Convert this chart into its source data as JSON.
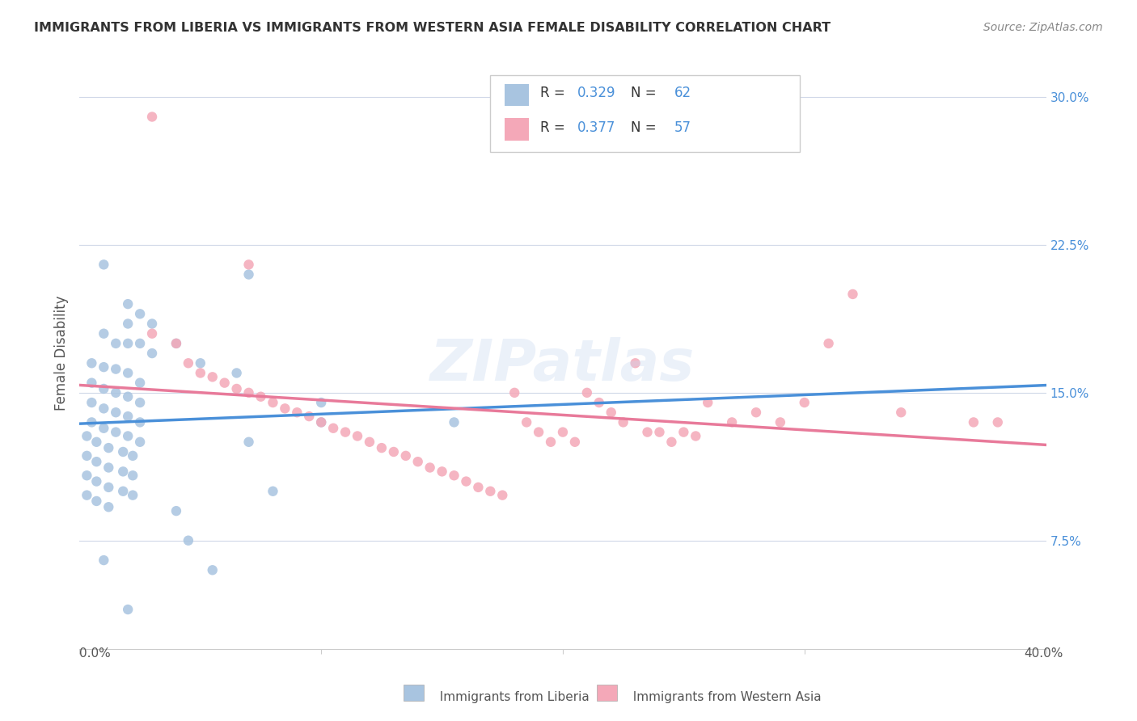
{
  "title": "IMMIGRANTS FROM LIBERIA VS IMMIGRANTS FROM WESTERN ASIA FEMALE DISABILITY CORRELATION CHART",
  "source": "Source: ZipAtlas.com",
  "xlabel_bottom_left": "0.0%",
  "xlabel_bottom_right": "40.0%",
  "ylabel": "Female Disability",
  "y_ticks": [
    0.075,
    0.15,
    0.225,
    0.3
  ],
  "y_tick_labels": [
    "7.5%",
    "15.0%",
    "22.5%",
    "30.0%"
  ],
  "x_min": 0.0,
  "x_max": 0.4,
  "y_min": 0.02,
  "y_max": 0.32,
  "liberia_R": 0.329,
  "liberia_N": 62,
  "western_asia_R": 0.377,
  "western_asia_N": 57,
  "liberia_color": "#a8c4e0",
  "western_asia_color": "#f4a8b8",
  "liberia_line_color": "#4a90d9",
  "western_asia_line_color": "#e87a9a",
  "liberia_scatter": [
    [
      0.01,
      0.215
    ],
    [
      0.02,
      0.195
    ],
    [
      0.02,
      0.185
    ],
    [
      0.025,
      0.19
    ],
    [
      0.03,
      0.185
    ],
    [
      0.01,
      0.18
    ],
    [
      0.015,
      0.175
    ],
    [
      0.02,
      0.175
    ],
    [
      0.025,
      0.175
    ],
    [
      0.03,
      0.17
    ],
    [
      0.005,
      0.165
    ],
    [
      0.01,
      0.163
    ],
    [
      0.015,
      0.162
    ],
    [
      0.02,
      0.16
    ],
    [
      0.025,
      0.155
    ],
    [
      0.005,
      0.155
    ],
    [
      0.01,
      0.152
    ],
    [
      0.015,
      0.15
    ],
    [
      0.02,
      0.148
    ],
    [
      0.025,
      0.145
    ],
    [
      0.005,
      0.145
    ],
    [
      0.01,
      0.142
    ],
    [
      0.015,
      0.14
    ],
    [
      0.02,
      0.138
    ],
    [
      0.025,
      0.135
    ],
    [
      0.005,
      0.135
    ],
    [
      0.01,
      0.132
    ],
    [
      0.015,
      0.13
    ],
    [
      0.02,
      0.128
    ],
    [
      0.025,
      0.125
    ],
    [
      0.003,
      0.128
    ],
    [
      0.007,
      0.125
    ],
    [
      0.012,
      0.122
    ],
    [
      0.018,
      0.12
    ],
    [
      0.022,
      0.118
    ],
    [
      0.003,
      0.118
    ],
    [
      0.007,
      0.115
    ],
    [
      0.012,
      0.112
    ],
    [
      0.018,
      0.11
    ],
    [
      0.022,
      0.108
    ],
    [
      0.003,
      0.108
    ],
    [
      0.007,
      0.105
    ],
    [
      0.012,
      0.102
    ],
    [
      0.018,
      0.1
    ],
    [
      0.022,
      0.098
    ],
    [
      0.003,
      0.098
    ],
    [
      0.007,
      0.095
    ],
    [
      0.012,
      0.092
    ],
    [
      0.04,
      0.175
    ],
    [
      0.05,
      0.165
    ],
    [
      0.065,
      0.16
    ],
    [
      0.1,
      0.145
    ],
    [
      0.1,
      0.135
    ],
    [
      0.155,
      0.135
    ],
    [
      0.07,
      0.125
    ],
    [
      0.08,
      0.1
    ],
    [
      0.04,
      0.09
    ],
    [
      0.045,
      0.075
    ],
    [
      0.055,
      0.06
    ],
    [
      0.01,
      0.065
    ],
    [
      0.02,
      0.04
    ],
    [
      0.07,
      0.21
    ]
  ],
  "western_asia_scatter": [
    [
      0.03,
      0.29
    ],
    [
      0.07,
      0.215
    ],
    [
      0.03,
      0.18
    ],
    [
      0.04,
      0.175
    ],
    [
      0.045,
      0.165
    ],
    [
      0.05,
      0.16
    ],
    [
      0.055,
      0.158
    ],
    [
      0.06,
      0.155
    ],
    [
      0.065,
      0.152
    ],
    [
      0.07,
      0.15
    ],
    [
      0.075,
      0.148
    ],
    [
      0.08,
      0.145
    ],
    [
      0.085,
      0.142
    ],
    [
      0.09,
      0.14
    ],
    [
      0.095,
      0.138
    ],
    [
      0.1,
      0.135
    ],
    [
      0.105,
      0.132
    ],
    [
      0.11,
      0.13
    ],
    [
      0.115,
      0.128
    ],
    [
      0.12,
      0.125
    ],
    [
      0.125,
      0.122
    ],
    [
      0.13,
      0.12
    ],
    [
      0.135,
      0.118
    ],
    [
      0.14,
      0.115
    ],
    [
      0.145,
      0.112
    ],
    [
      0.15,
      0.11
    ],
    [
      0.155,
      0.108
    ],
    [
      0.16,
      0.105
    ],
    [
      0.165,
      0.102
    ],
    [
      0.17,
      0.1
    ],
    [
      0.175,
      0.098
    ],
    [
      0.18,
      0.15
    ],
    [
      0.185,
      0.135
    ],
    [
      0.19,
      0.13
    ],
    [
      0.195,
      0.125
    ],
    [
      0.2,
      0.13
    ],
    [
      0.205,
      0.125
    ],
    [
      0.21,
      0.15
    ],
    [
      0.215,
      0.145
    ],
    [
      0.22,
      0.14
    ],
    [
      0.225,
      0.135
    ],
    [
      0.23,
      0.165
    ],
    [
      0.235,
      0.13
    ],
    [
      0.24,
      0.13
    ],
    [
      0.245,
      0.125
    ],
    [
      0.25,
      0.13
    ],
    [
      0.255,
      0.128
    ],
    [
      0.26,
      0.145
    ],
    [
      0.27,
      0.135
    ],
    [
      0.28,
      0.14
    ],
    [
      0.29,
      0.135
    ],
    [
      0.3,
      0.145
    ],
    [
      0.31,
      0.175
    ],
    [
      0.32,
      0.2
    ],
    [
      0.34,
      0.14
    ],
    [
      0.37,
      0.135
    ],
    [
      0.38,
      0.135
    ]
  ],
  "background_color": "#ffffff",
  "grid_color": "#d0d8e8",
  "watermark": "ZIPatlas",
  "watermark_color": "#c8d8f0",
  "watermark_alpha": 0.35,
  "legend_R_color": "#4a90d9",
  "legend_N_color": "#4a90d9",
  "text_color": "#333333",
  "axis_color": "#555555"
}
